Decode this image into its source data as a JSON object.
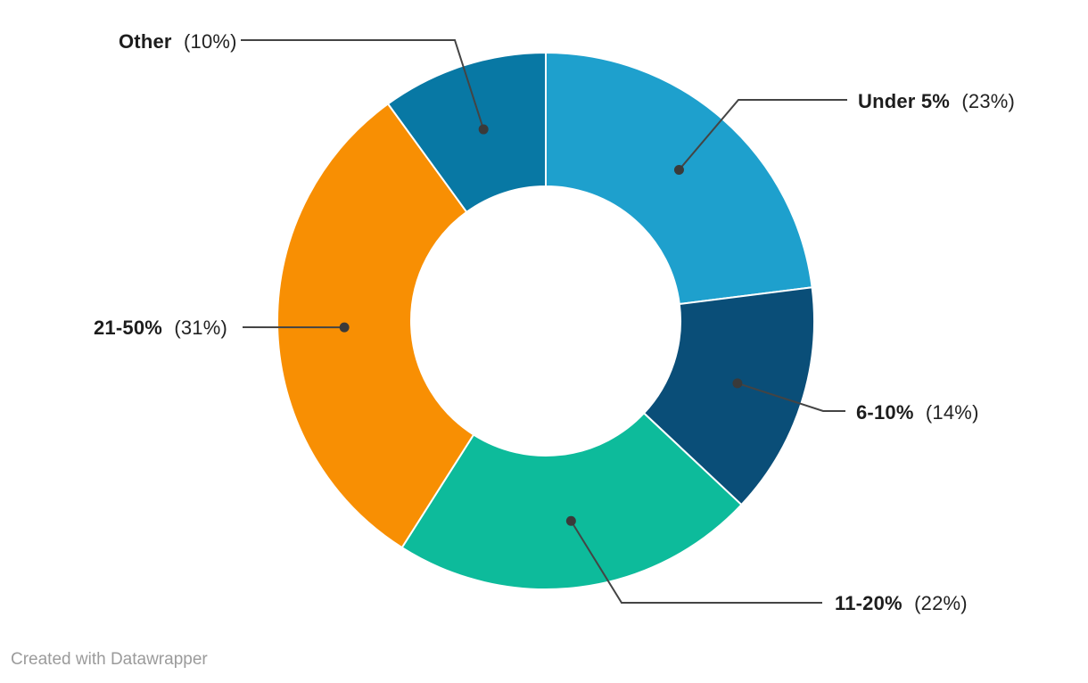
{
  "chart_data": {
    "type": "pie",
    "subtype": "donut",
    "title": "",
    "legend": "none",
    "label_style": "callout-with-leader-lines",
    "direction": "clockwise",
    "start_angle_deg": 0,
    "inner_radius_ratio": 0.5,
    "unit": "%",
    "categories": [
      "Under 5%",
      "6-10%",
      "11-20%",
      "21-50%",
      "Other"
    ],
    "values": [
      23,
      14,
      22,
      31,
      10
    ],
    "slices": [
      {
        "label": "Under 5%",
        "value": 23,
        "value_display": "(23%)",
        "color": "#1EA0CD"
      },
      {
        "label": "6-10%",
        "value": 14,
        "value_display": "(14%)",
        "color": "#0A4E78"
      },
      {
        "label": "11-20%",
        "value": 22,
        "value_display": "(22%)",
        "color": "#0DBB9B"
      },
      {
        "label": "21-50%",
        "value": 31,
        "value_display": "(31%)",
        "color": "#F88F03"
      },
      {
        "label": "Other",
        "value": 10,
        "value_display": "(10%)",
        "color": "#0878A4"
      }
    ],
    "colors": {
      "background": "#ffffff",
      "slice_separator": "#ffffff",
      "leader_line": "#444444",
      "leader_dot": "#3a3a3a",
      "label_text": "#1d1d1d",
      "footer_text": "#9b9b9b"
    }
  },
  "footer": {
    "attribution": "Created with Datawrapper"
  }
}
